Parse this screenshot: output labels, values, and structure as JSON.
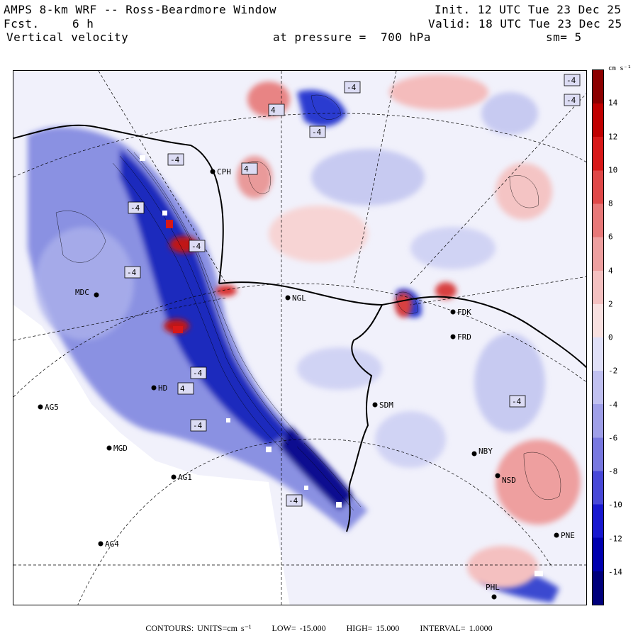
{
  "header": {
    "title": "AMPS 8-km WRF -- Ross-Beardmore Window",
    "init": "Init. 12 UTC Tue 23 Dec 25",
    "fcst_label": "Fcst.",
    "fcst_value": "6 h",
    "valid": "Valid: 18 UTC Tue 23 Dec 25",
    "field": "Vertical velocity",
    "pressure": "at pressure =  700 hPa",
    "smoothing": "sm= 5"
  },
  "colorbar": {
    "units_label": "cm s⁻¹",
    "ticks": [
      "14",
      "12",
      "10",
      "8",
      "6",
      "4",
      "2",
      "0",
      "-2",
      "-4",
      "-6",
      "-8",
      "-10",
      "-12",
      "-14"
    ],
    "range": [
      -16,
      16
    ],
    "colors_positive": [
      "#f8e0e0",
      "#f4c0c0",
      "#ee9f9f",
      "#e87878",
      "#e04848",
      "#d81818",
      "#c00000",
      "#8c0000"
    ],
    "colors_negative": [
      "#e0e0f8",
      "#c0c0f0",
      "#9f9fe8",
      "#7878e0",
      "#4848d8",
      "#1818d0",
      "#0000b0",
      "#00007c"
    ]
  },
  "stations": [
    {
      "id": "CPH",
      "label": "CPH"
    },
    {
      "id": "NGL",
      "label": "NGL"
    },
    {
      "id": "MDC",
      "label": "MDC"
    },
    {
      "id": "FDK",
      "label": "FDK"
    },
    {
      "id": "FRD",
      "label": "FRD"
    },
    {
      "id": "AG5",
      "label": "AG5"
    },
    {
      "id": "MGD",
      "label": "MGD"
    },
    {
      "id": "AG1",
      "label": "AG1"
    },
    {
      "id": "AG4",
      "label": "AG4"
    },
    {
      "id": "SDM",
      "label": "SDM"
    },
    {
      "id": "NBY",
      "label": "NBY"
    },
    {
      "id": "NSD",
      "label": "NSD"
    },
    {
      "id": "PNE",
      "label": "PNE"
    },
    {
      "id": "PHL",
      "label": "PHL"
    },
    {
      "id": "HD",
      "label": "HD"
    }
  ],
  "contour_labels": [
    "-4",
    "-4",
    "4",
    "-4",
    "4",
    "-4",
    "-4",
    "-4",
    "-4",
    "4",
    "-4",
    "-4",
    "-4",
    "-4",
    "-4"
  ],
  "footer": {
    "contours": "CONTOURS:  UNITS=cm s⁻¹",
    "low": "LOW= -15.000",
    "high": "HIGH=  15.000",
    "interval": "INTERVAL=   1.0000"
  }
}
